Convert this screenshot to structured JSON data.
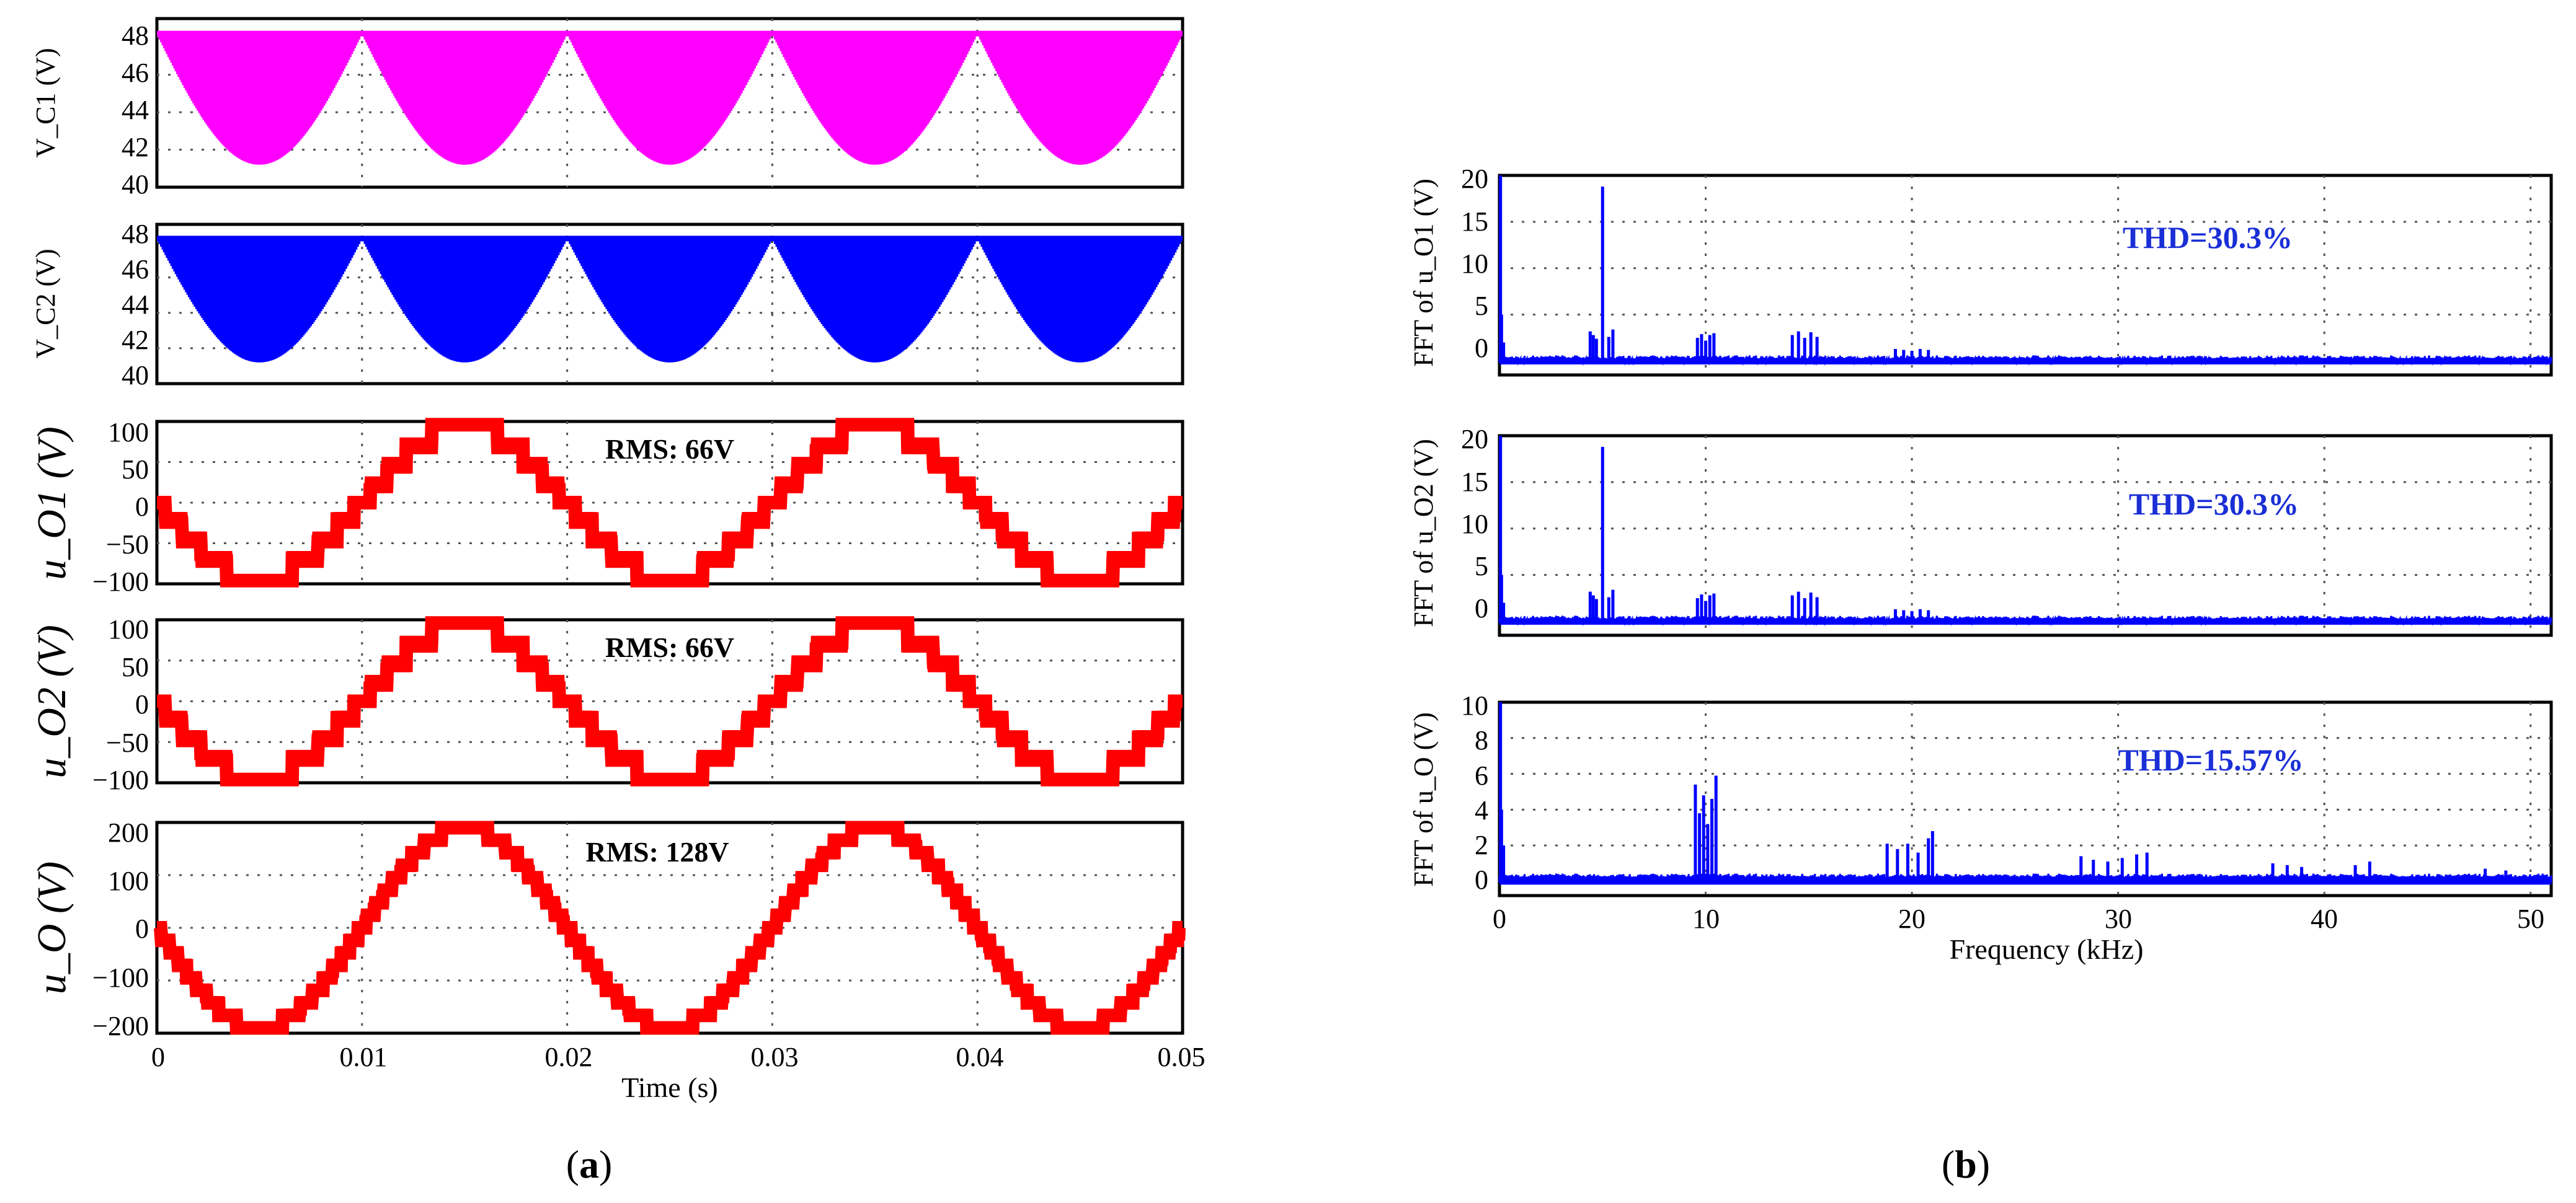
{
  "panel_labels": {
    "a": "a",
    "b": "b"
  },
  "chart_data": [
    {
      "type": "line",
      "id": "vc1",
      "panel": "a",
      "title": "",
      "ylabel": "V_C1 (V)",
      "xlabel": "",
      "xlim": [
        0,
        0.05
      ],
      "ylim": [
        40,
        49
      ],
      "yticks": [
        "48",
        "46",
        "44",
        "42",
        "40"
      ],
      "ytick_values": [
        48,
        46,
        44,
        42,
        40
      ],
      "xticks": [],
      "grid": true,
      "series": [
        {
          "name": "V_C1",
          "color": "#ff00ff",
          "signal": "rectified_ripple",
          "max": 48.2,
          "min": 41.2,
          "fundamental_hz": 50,
          "switching": "dense"
        }
      ]
    },
    {
      "type": "line",
      "id": "vc2",
      "panel": "a",
      "title": "",
      "ylabel": "V_C2 (V)",
      "xlabel": "",
      "xlim": [
        0,
        0.05
      ],
      "ylim": [
        40,
        49
      ],
      "yticks": [
        "48",
        "46",
        "44",
        "42",
        "40"
      ],
      "ytick_values": [
        48,
        46,
        44,
        42,
        40
      ],
      "xticks": [],
      "grid": true,
      "series": [
        {
          "name": "V_C2",
          "color": "#0000ff",
          "signal": "rectified_ripple",
          "max": 48.2,
          "min": 41.2,
          "fundamental_hz": 50,
          "switching": "dense"
        }
      ]
    },
    {
      "type": "line",
      "id": "uo1",
      "panel": "a",
      "title": "",
      "ylabel": "u_O1 (V)",
      "xlabel": "",
      "xlim": [
        0,
        0.05
      ],
      "ylim": [
        -100,
        100
      ],
      "yticks": [
        "100",
        "50",
        "0",
        "−50",
        "−100"
      ],
      "ytick_values": [
        100,
        50,
        0,
        -50,
        -100
      ],
      "xticks": [],
      "grid": true,
      "annotation": "RMS: 66V",
      "series": [
        {
          "name": "u_O1",
          "color": "#ff0000",
          "signal": "staircase",
          "levels": 4,
          "amplitude": 96,
          "fundamental_hz": 50,
          "phase_sign": -1
        }
      ]
    },
    {
      "type": "line",
      "id": "uo2",
      "panel": "a",
      "title": "",
      "ylabel": "u_O2 (V)",
      "xlabel": "",
      "xlim": [
        0,
        0.05
      ],
      "ylim": [
        -100,
        100
      ],
      "yticks": [
        "100",
        "50",
        "0",
        "−50",
        "−100"
      ],
      "ytick_values": [
        100,
        50,
        0,
        -50,
        -100
      ],
      "xticks": [],
      "grid": true,
      "annotation": "RMS: 66V",
      "series": [
        {
          "name": "u_O2",
          "color": "#ff0000",
          "signal": "staircase",
          "levels": 4,
          "amplitude": 96,
          "fundamental_hz": 50,
          "phase_sign": -1
        }
      ]
    },
    {
      "type": "line",
      "id": "uo",
      "panel": "a",
      "title": "",
      "ylabel": "u_O (V)",
      "xlabel": "Time (s)",
      "xlim": [
        0,
        0.05
      ],
      "ylim": [
        -200,
        200
      ],
      "yticks": [
        "200",
        "100",
        "0",
        "−100",
        "−200"
      ],
      "ytick_values": [
        200,
        100,
        0,
        -100,
        -200
      ],
      "xticks": [
        "0",
        "0.01",
        "0.02",
        "0.03",
        "0.04",
        "0.05"
      ],
      "xtick_values": [
        0,
        0.01,
        0.02,
        0.03,
        0.04,
        0.05
      ],
      "grid": true,
      "annotation": "RMS: 128V",
      "series": [
        {
          "name": "u_O",
          "color": "#ff0000",
          "signal": "staircase",
          "levels": 8,
          "amplitude": 190,
          "fundamental_hz": 50,
          "phase_sign": -1
        }
      ]
    },
    {
      "type": "bar",
      "id": "fft1",
      "panel": "b",
      "title": "",
      "ylabel": "FFT of u_O1 (V)",
      "xlabel": "",
      "xlim": [
        0,
        51
      ],
      "ylim": [
        -1.5,
        20
      ],
      "yticks": [
        "20",
        "15",
        "10",
        "5",
        "0"
      ],
      "ytick_values": [
        20,
        15,
        10,
        5,
        0
      ],
      "xticks": [],
      "xgrid_values": [
        10,
        20,
        30,
        40,
        50
      ],
      "grid": true,
      "annotation": "THD=30.3%",
      "series": [
        {
          "name": "spectrum",
          "color": "#0000ff",
          "x_khz": [
            0.05,
            0.1,
            0.2,
            4.4,
            4.55,
            4.7,
            5.0,
            5.3,
            5.5,
            9.6,
            9.8,
            10.0,
            10.2,
            10.4,
            14.2,
            14.5,
            14.8,
            15.1,
            15.4,
            19.2,
            19.6,
            20.0,
            20.4,
            20.8
          ],
          "y": [
            20,
            5,
            2,
            3.2,
            2.8,
            2.4,
            18.8,
            2.6,
            3.4,
            2.5,
            2.9,
            2.2,
            2.8,
            3.0,
            2.8,
            3.2,
            2.5,
            3.1,
            2.6,
            1.3,
            1.2,
            1.1,
            1.3,
            1.2
          ]
        }
      ]
    },
    {
      "type": "bar",
      "id": "fft2",
      "panel": "b",
      "title": "",
      "ylabel": "FFT of u_O2 (V)",
      "xlabel": "",
      "xlim": [
        0,
        51
      ],
      "ylim": [
        -1.5,
        20
      ],
      "yticks": [
        "20",
        "15",
        "10",
        "5",
        "0"
      ],
      "ytick_values": [
        20,
        15,
        10,
        5,
        0
      ],
      "xticks": [],
      "xgrid_values": [
        10,
        20,
        30,
        40,
        50
      ],
      "grid": true,
      "annotation": "THD=30.3%",
      "series": [
        {
          "name": "spectrum",
          "color": "#0000ff",
          "x_khz": [
            0.05,
            0.1,
            0.2,
            4.4,
            4.55,
            4.7,
            5.0,
            5.3,
            5.5,
            9.6,
            9.8,
            10.0,
            10.2,
            10.4,
            14.2,
            14.5,
            14.8,
            15.1,
            15.4,
            19.2,
            19.6,
            20.0,
            20.4,
            20.8
          ],
          "y": [
            20,
            5,
            2,
            3.2,
            2.8,
            2.4,
            18.8,
            2.6,
            3.4,
            2.5,
            2.9,
            2.2,
            2.8,
            3.0,
            2.8,
            3.2,
            2.5,
            3.1,
            2.6,
            1.3,
            1.2,
            1.1,
            1.3,
            1.2
          ]
        }
      ]
    },
    {
      "type": "bar",
      "id": "fft3",
      "panel": "b",
      "title": "",
      "ylabel": "FFT of u_O (V)",
      "xlabel": "Frequency (kHz)",
      "xlim": [
        0,
        51
      ],
      "ylim": [
        -0.8,
        10
      ],
      "yticks": [
        "10",
        "8",
        "6",
        "4",
        "2",
        "0"
      ],
      "ytick_values": [
        10,
        8,
        6,
        4,
        2,
        0
      ],
      "xticks": [
        "0",
        "10",
        "20",
        "30",
        "40",
        "50"
      ],
      "xtick_values": [
        0,
        10,
        20,
        30,
        40,
        50
      ],
      "grid": true,
      "annotation": "THD=15.57%",
      "series": [
        {
          "name": "spectrum",
          "color": "#0000ff",
          "x_khz": [
            0.05,
            0.1,
            0.2,
            9.5,
            9.7,
            9.9,
            10.1,
            10.3,
            10.5,
            18.8,
            19.3,
            19.8,
            20.3,
            20.8,
            21.0,
            28.2,
            28.8,
            29.5,
            30.2,
            30.9,
            31.4,
            37.5,
            38.2,
            38.9,
            41.5,
            42.2,
            47.8,
            48.8
          ],
          "y": [
            10,
            4,
            2,
            5.4,
            3.8,
            4.8,
            3.2,
            4.6,
            5.9,
            2.1,
            1.8,
            2.1,
            1.6,
            2.4,
            2.8,
            1.4,
            1.2,
            1.1,
            1.3,
            1.5,
            1.6,
            1.0,
            0.9,
            0.8,
            0.9,
            1.1,
            0.7,
            0.6
          ]
        }
      ]
    }
  ]
}
